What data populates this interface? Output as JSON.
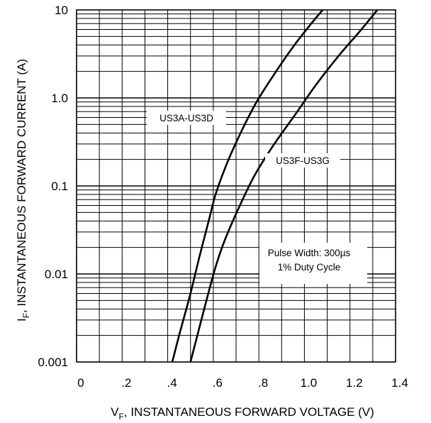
{
  "chart_data": {
    "type": "line",
    "xlabel_main": "V",
    "xlabel_sub": "F",
    "xlabel_rest": ", INSTANTANEOUS FORWARD VOLTAGE (V)",
    "ylabel_main": "I",
    "ylabel_sub": "F",
    "ylabel_rest": ", INSTANTANEOUS FORWARD CURRENT (A)",
    "xlim": [
      0,
      1.4
    ],
    "ylim": [
      0.001,
      10
    ],
    "y_scale": "log",
    "grid": true,
    "x_ticks": [
      {
        "value": 0,
        "label": "0"
      },
      {
        "value": 0.2,
        "label": ".2"
      },
      {
        "value": 0.4,
        "label": ".4"
      },
      {
        "value": 0.6,
        "label": ".6"
      },
      {
        "value": 0.8,
        "label": ".8"
      },
      {
        "value": 1.0,
        "label": "1.0"
      },
      {
        "value": 1.2,
        "label": "1.2"
      },
      {
        "value": 1.4,
        "label": "1.4"
      }
    ],
    "y_ticks": [
      {
        "value": 10,
        "label": "10"
      },
      {
        "value": 1,
        "label": "1.0"
      },
      {
        "value": 0.1,
        "label": "0.1"
      },
      {
        "value": 0.01,
        "label": "0.01"
      },
      {
        "value": 0.001,
        "label": "0.001"
      }
    ],
    "series": [
      {
        "name": "US3A-US3D",
        "x": [
          0.42,
          0.45,
          0.5,
          0.54,
          0.58,
          0.61,
          0.66,
          0.72,
          0.79,
          0.87,
          0.95,
          1.03,
          1.08
        ],
        "y": [
          0.001,
          0.002,
          0.006,
          0.016,
          0.04,
          0.08,
          0.18,
          0.4,
          0.9,
          1.9,
          3.8,
          7.0,
          10
        ]
      },
      {
        "name": "US3F-US3G",
        "x": [
          0.5,
          0.53,
          0.57,
          0.61,
          0.65,
          0.71,
          0.78,
          0.86,
          0.96,
          1.05,
          1.15,
          1.25,
          1.32
        ],
        "y": [
          0.001,
          0.002,
          0.005,
          0.012,
          0.024,
          0.055,
          0.13,
          0.28,
          0.65,
          1.4,
          3.0,
          6.0,
          10
        ]
      }
    ],
    "annotations": {
      "pulse_width": "Pulse Width: 300µs",
      "duty_cycle": "1% Duty Cycle"
    }
  }
}
